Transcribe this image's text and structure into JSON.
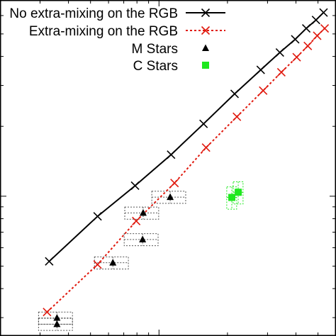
{
  "chart_data": {
    "type": "scatter",
    "title": "",
    "xlabel": "",
    "ylabel": "",
    "xlog": true,
    "ylog": true,
    "legend_position": "top-right",
    "grid": false,
    "xlim": [
      0.02,
      0.6
    ],
    "ylim": [
      0.025,
      0.7
    ],
    "series": [
      {
        "name": "No extra-mixing on the RGB",
        "kind": "line",
        "marker": "x",
        "color": "#000000",
        "dash": "solid",
        "points": [
          [
            0.0329,
            0.0524
          ],
          [
            0.0537,
            0.0819
          ],
          [
            0.0785,
            0.111
          ],
          [
            0.113,
            0.151
          ],
          [
            0.157,
            0.205
          ],
          [
            0.215,
            0.276
          ],
          [
            0.28,
            0.35
          ],
          [
            0.34,
            0.416
          ],
          [
            0.397,
            0.474
          ],
          [
            0.444,
            0.528
          ],
          [
            0.49,
            0.574
          ],
          [
            0.529,
            0.618
          ]
        ]
      },
      {
        "name": "Extra-mixing on the RGB",
        "kind": "line",
        "marker": "x",
        "color": "#e0180d",
        "dash": "dotted",
        "points": [
          [
            0.0322,
            0.0317
          ],
          [
            0.0537,
            0.0508
          ],
          [
            0.0794,
            0.0782
          ],
          [
            0.117,
            0.114
          ],
          [
            0.161,
            0.162
          ],
          [
            0.22,
            0.22
          ],
          [
            0.287,
            0.285
          ],
          [
            0.345,
            0.342
          ],
          [
            0.403,
            0.397
          ],
          [
            0.451,
            0.444
          ],
          [
            0.496,
            0.491
          ],
          [
            0.535,
            0.528
          ]
        ]
      },
      {
        "name": "M Stars",
        "kind": "points",
        "marker": "triangle",
        "color": "#000000",
        "points": [
          [
            0.0356,
            0.0299
          ],
          [
            0.0356,
            0.0281
          ],
          [
            0.0627,
            0.0517
          ],
          [
            0.0847,
            0.0651
          ],
          [
            0.0852,
            0.0847
          ],
          [
            0.112,
            0.0991
          ]
        ]
      },
      {
        "name": "C Stars",
        "kind": "points",
        "marker": "square",
        "color": "#1ee81e",
        "points": [
          [
            0.209,
            0.0988
          ],
          [
            0.223,
            0.104
          ]
        ]
      }
    ]
  }
}
